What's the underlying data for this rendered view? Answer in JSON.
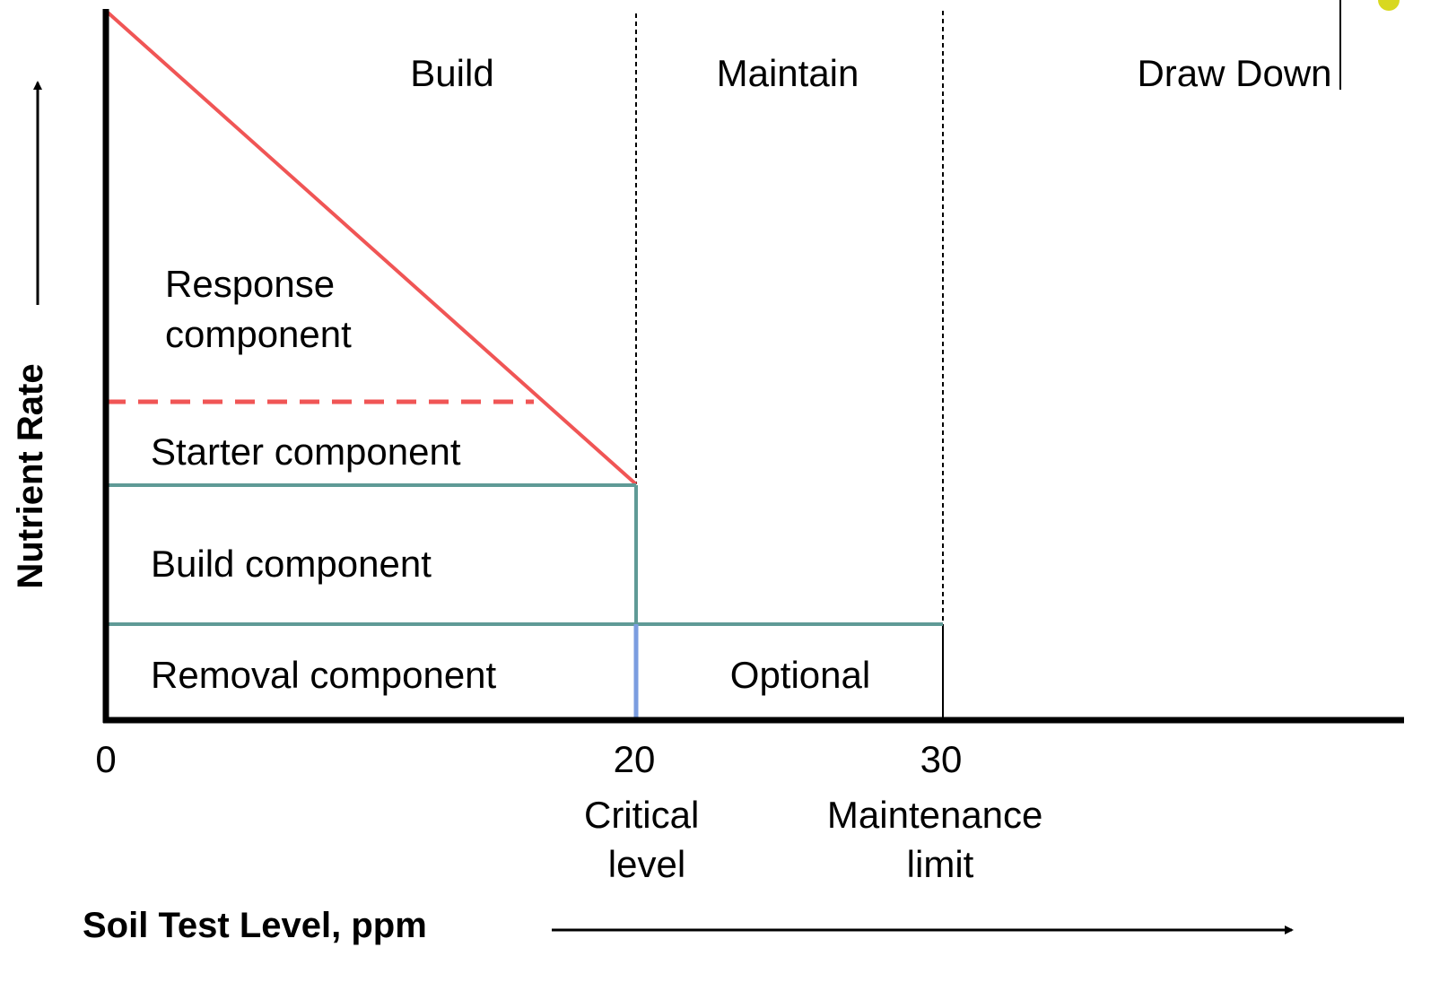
{
  "zones": {
    "build": "Build",
    "maintain": "Maintain",
    "draw_down": "Draw Down"
  },
  "components": {
    "response": [
      "Response",
      "component"
    ],
    "starter": "Starter component",
    "build": "Build component",
    "removal": "Removal component",
    "optional": "Optional"
  },
  "x_axis": {
    "ticks": [
      "0",
      "20",
      "30"
    ],
    "critical": [
      "Critical",
      "level"
    ],
    "maintenance": [
      "Maintenance",
      "limit"
    ],
    "title": "Soil Test Level, ppm"
  },
  "y_axis": {
    "title": "Nutrient Rate"
  }
}
